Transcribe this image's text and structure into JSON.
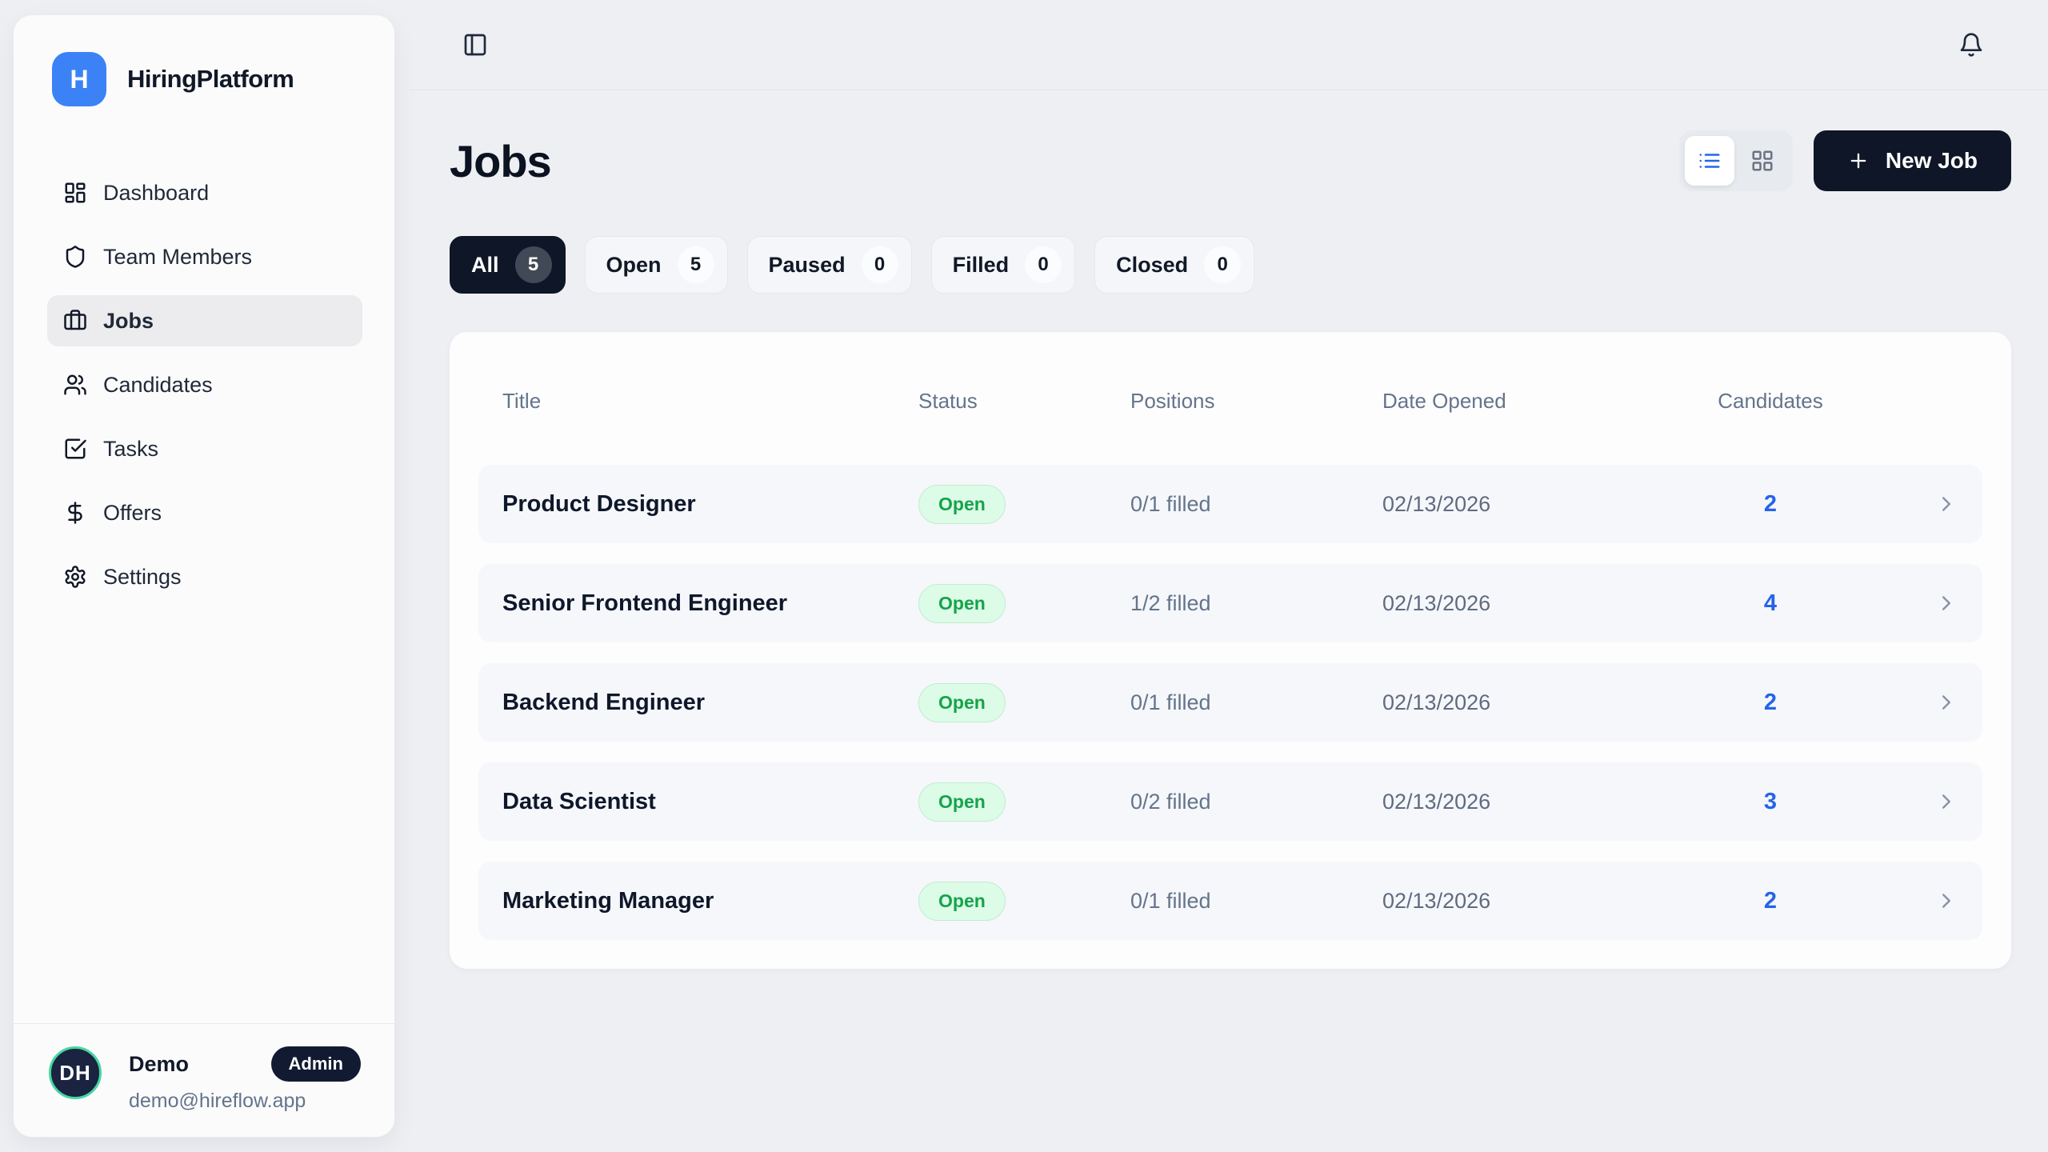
{
  "brand": {
    "logo_letter": "H",
    "name": "HiringPlatform"
  },
  "sidebar": {
    "items": [
      {
        "icon": "dashboard-icon",
        "label": "Dashboard",
        "active": false
      },
      {
        "icon": "shield-icon",
        "label": "Team Members",
        "active": false
      },
      {
        "icon": "briefcase-icon",
        "label": "Jobs",
        "active": true
      },
      {
        "icon": "users-icon",
        "label": "Candidates",
        "active": false
      },
      {
        "icon": "task-check-icon",
        "label": "Tasks",
        "active": false
      },
      {
        "icon": "dollar-icon",
        "label": "Offers",
        "active": false
      },
      {
        "icon": "gear-icon",
        "label": "Settings",
        "active": false
      }
    ]
  },
  "user": {
    "initials": "DH",
    "name": "Demo",
    "email": "demo@hireflow.app",
    "badge": "Admin"
  },
  "page": {
    "title": "Jobs"
  },
  "toolbar": {
    "new_job_label": "New Job"
  },
  "filters": [
    {
      "label": "All",
      "count": "5",
      "active": true
    },
    {
      "label": "Open",
      "count": "5",
      "active": false
    },
    {
      "label": "Paused",
      "count": "0",
      "active": false
    },
    {
      "label": "Filled",
      "count": "0",
      "active": false
    },
    {
      "label": "Closed",
      "count": "0",
      "active": false
    }
  ],
  "table": {
    "columns": [
      "Title",
      "Status",
      "Positions",
      "Date Opened",
      "Candidates"
    ],
    "rows": [
      {
        "title": "Product Designer",
        "status": "Open",
        "positions": "0/1 filled",
        "date_opened": "02/13/2026",
        "candidates": "2"
      },
      {
        "title": "Senior Frontend Engineer",
        "status": "Open",
        "positions": "1/2 filled",
        "date_opened": "02/13/2026",
        "candidates": "4"
      },
      {
        "title": "Backend Engineer",
        "status": "Open",
        "positions": "0/1 filled",
        "date_opened": "02/13/2026",
        "candidates": "2"
      },
      {
        "title": "Data Scientist",
        "status": "Open",
        "positions": "0/2 filled",
        "date_opened": "02/13/2026",
        "candidates": "3"
      },
      {
        "title": "Marketing Manager",
        "status": "Open",
        "positions": "0/1 filled",
        "date_opened": "02/13/2026",
        "candidates": "2"
      }
    ]
  },
  "colors": {
    "page_bg": "#edeff3",
    "navy": "#0e1627",
    "logo_blue": "#3b82f6",
    "accent_blue": "#2563eb",
    "badge_green_bg": "#dcfce7",
    "badge_green_text": "#16a34a",
    "avatar_ring": "#45d6a0"
  }
}
